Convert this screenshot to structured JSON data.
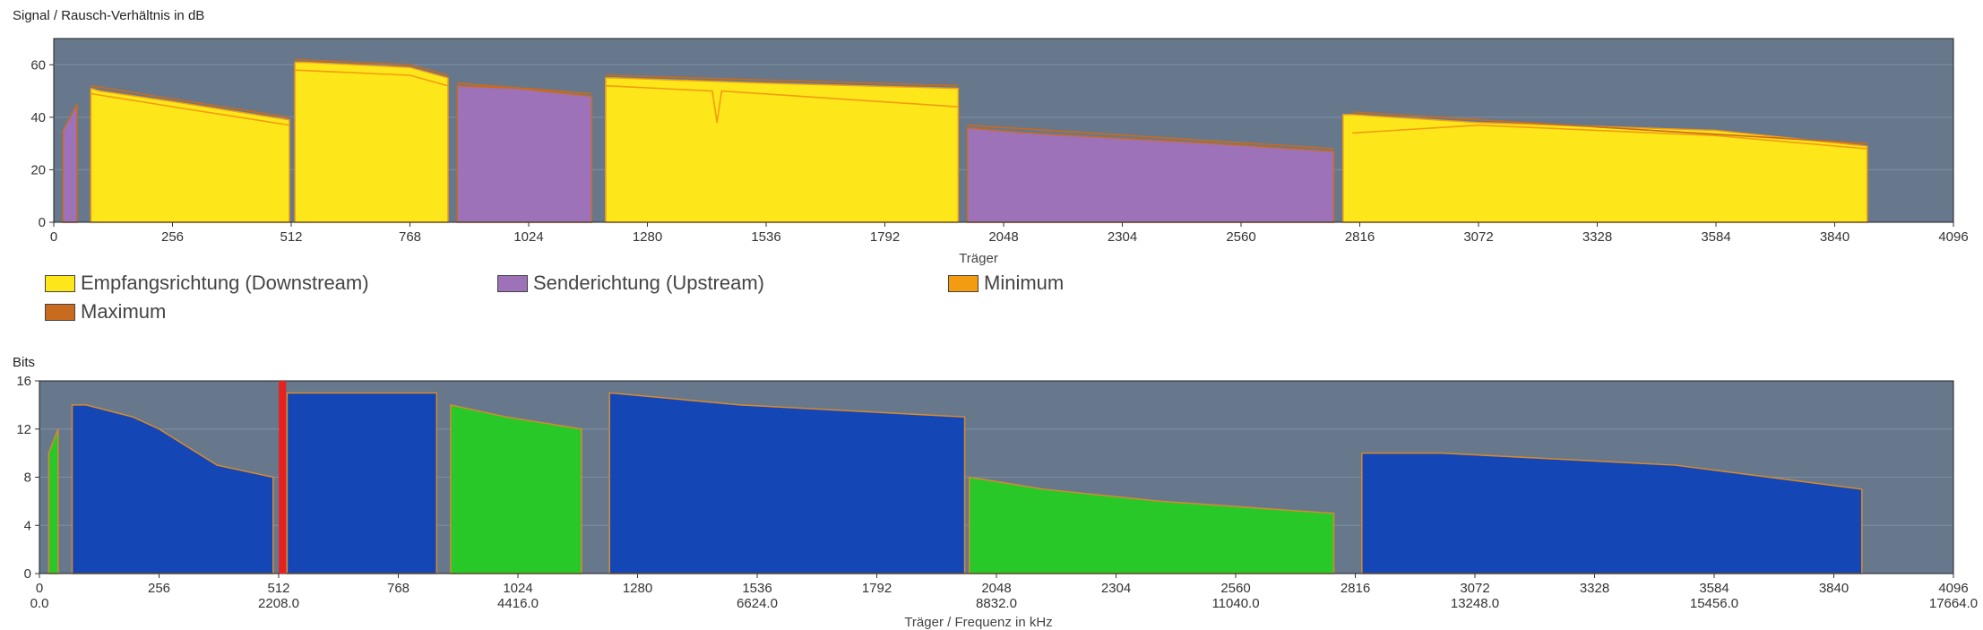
{
  "colors": {
    "plot_bg": "#67788c",
    "downstream": "#fde61a",
    "upstream": "#9d72b8",
    "minimum": "#f39c12",
    "maximum": "#c96b1e",
    "bits_downstream": "#1446b5",
    "bits_upstream": "#28c828",
    "bits_line": "#d88a2c",
    "marker": "#e8201e"
  },
  "legend": {
    "items": [
      {
        "label": "Empfangsrichtung (Downstream)",
        "color": "#fde61a"
      },
      {
        "label": "Senderichtung (Upstream)",
        "color": "#9d72b8"
      },
      {
        "label": "Minimum",
        "color": "#f39c12"
      },
      {
        "label": "Maximum",
        "color": "#c96b1e"
      }
    ]
  },
  "chart_data": [
    {
      "type": "area",
      "title": "Signal / Rausch-Verhältnis in dB",
      "xlabel": "Träger",
      "ylabel": "",
      "xlim": [
        0,
        4096
      ],
      "ylim": [
        0,
        70
      ],
      "x_ticks": [
        0,
        256,
        512,
        768,
        1024,
        1280,
        1536,
        1792,
        2048,
        2304,
        2560,
        2816,
        3072,
        3328,
        3584,
        3840,
        4096
      ],
      "y_ticks": [
        0,
        20,
        40,
        60
      ],
      "grid": true,
      "series": [
        {
          "name": "Empfangsrichtung (Downstream)",
          "segments": [
            {
              "x": [
                80,
                100,
                256,
                400,
                508
              ],
              "y": [
                51,
                50,
                46,
                42,
                39
              ]
            },
            {
              "x": [
                520,
                540,
                768,
                850
              ],
              "y": [
                61,
                61,
                59,
                55
              ]
            },
            {
              "x": [
                1190,
                1210,
                1536,
                1950
              ],
              "y": [
                55,
                55,
                53,
                51
              ]
            },
            {
              "x": [
                2780,
                2800,
                3072,
                3584,
                3910
              ],
              "y": [
                41,
                41,
                38,
                35,
                29
              ]
            }
          ]
        },
        {
          "name": "Senderichtung (Upstream)",
          "segments": [
            {
              "x": [
                20,
                50
              ],
              "y": [
                35,
                45
              ]
            },
            {
              "x": [
                870,
                1000,
                1160
              ],
              "y": [
                52,
                51,
                48
              ]
            },
            {
              "x": [
                1970,
                2100,
                2500,
                2760
              ],
              "y": [
                36,
                34,
                30,
                27
              ]
            }
          ]
        },
        {
          "name": "Minimum",
          "segments": [
            {
              "x": [
                80,
                256,
                508
              ],
              "y": [
                49,
                44,
                37
              ]
            },
            {
              "x": [
                520,
                768,
                850
              ],
              "y": [
                58,
                56,
                52
              ]
            },
            {
              "x": [
                1190,
                1420,
                1430,
                1440,
                1950
              ],
              "y": [
                52,
                50,
                38,
                50,
                44
              ]
            },
            {
              "x": [
                2800,
                3072,
                3584,
                3910
              ],
              "y": [
                34,
                37,
                33,
                28
              ]
            }
          ]
        },
        {
          "name": "Maximum",
          "segments": [
            {
              "x": [
                80,
                256,
                508
              ],
              "y": [
                52,
                47,
                40
              ]
            },
            {
              "x": [
                520,
                768,
                850
              ],
              "y": [
                62,
                60,
                56
              ]
            },
            {
              "x": [
                870,
                1160
              ],
              "y": [
                53,
                49
              ]
            },
            {
              "x": [
                1190,
                1950
              ],
              "y": [
                56,
                52
              ]
            },
            {
              "x": [
                1970,
                2760
              ],
              "y": [
                37,
                28
              ]
            },
            {
              "x": [
                2800,
                3910
              ],
              "y": [
                42,
                30
              ]
            }
          ]
        }
      ]
    },
    {
      "type": "area",
      "title": "Bits",
      "xlabel": "Träger / Frequenz in kHz",
      "ylabel": "",
      "xlim": [
        0,
        4096
      ],
      "ylim": [
        0,
        16
      ],
      "x_ticks": [
        0,
        256,
        512,
        768,
        1024,
        1280,
        1536,
        1792,
        2048,
        2304,
        2560,
        2816,
        3072,
        3328,
        3584,
        3840,
        4096
      ],
      "x_ticks_secondary": [
        {
          "x": 0,
          "label": "0.0"
        },
        {
          "x": 512,
          "label": "2208.0"
        },
        {
          "x": 1024,
          "label": "4416.0"
        },
        {
          "x": 1536,
          "label": "6624.0"
        },
        {
          "x": 2048,
          "label": "8832.0"
        },
        {
          "x": 2560,
          "label": "11040.0"
        },
        {
          "x": 3072,
          "label": "13248.0"
        },
        {
          "x": 3584,
          "label": "15456.0"
        },
        {
          "x": 4096,
          "label": "17664.0"
        }
      ],
      "y_ticks": [
        0,
        4,
        8,
        12,
        16
      ],
      "grid": true,
      "marker_x": 520,
      "series": [
        {
          "name": "Bits Downstream",
          "segments": [
            {
              "x": [
                70,
                100,
                200,
                256,
                380,
                500
              ],
              "y": [
                14,
                14,
                13,
                12,
                9,
                8
              ]
            },
            {
              "x": [
                530,
                580,
                850
              ],
              "y": [
                15,
                15,
                15
              ]
            },
            {
              "x": [
                1220,
                1500,
                1980
              ],
              "y": [
                15,
                14,
                13
              ]
            },
            {
              "x": [
                2830,
                3000,
                3500,
                3900
              ],
              "y": [
                10,
                10,
                9,
                7
              ]
            }
          ]
        },
        {
          "name": "Bits Upstream",
          "segments": [
            {
              "x": [
                20,
                40
              ],
              "y": [
                10,
                12
              ]
            },
            {
              "x": [
                880,
                1000,
                1160
              ],
              "y": [
                14,
                13,
                12
              ]
            },
            {
              "x": [
                1990,
                2150,
                2400,
                2770
              ],
              "y": [
                8,
                7,
                6,
                5
              ]
            }
          ]
        }
      ]
    }
  ]
}
